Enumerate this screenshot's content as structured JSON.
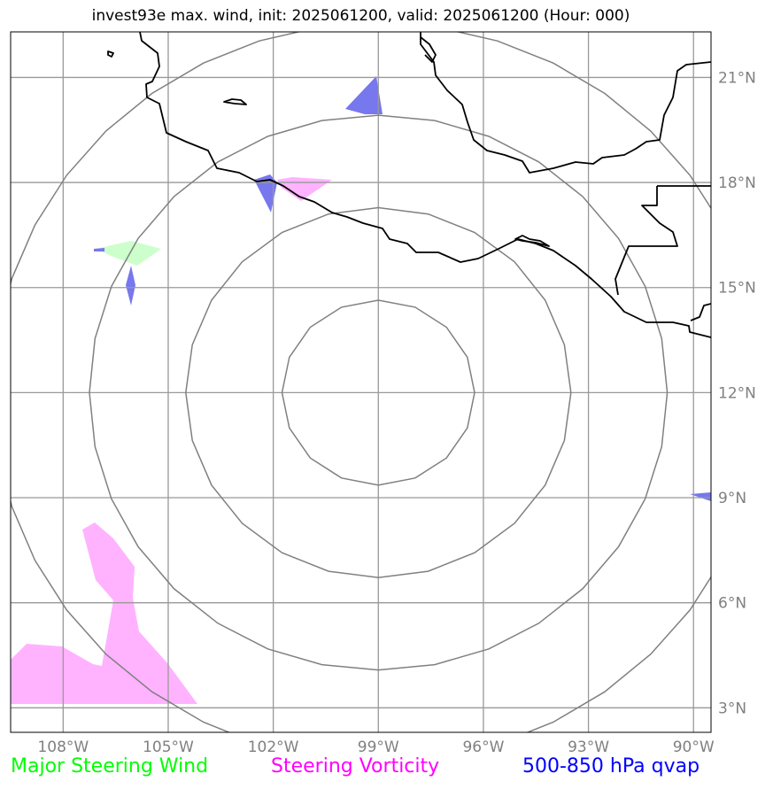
{
  "title": "invest93e max. wind, init: 2025061200, valid: 2025061200 (Hour: 000)",
  "map": {
    "lon_range": [
      -109.5,
      -89.5
    ],
    "lat_range": [
      2.3,
      22.3
    ],
    "lon_ticks": [
      {
        "value": -108,
        "label": "108°W"
      },
      {
        "value": -105,
        "label": "105°W"
      },
      {
        "value": -102,
        "label": "102°W"
      },
      {
        "value": -99,
        "label": "99°W"
      },
      {
        "value": -96,
        "label": "96°W"
      },
      {
        "value": -93,
        "label": "93°W"
      },
      {
        "value": -90,
        "label": "90°W"
      }
    ],
    "lat_ticks": [
      {
        "value": 3,
        "label": "3°N"
      },
      {
        "value": 6,
        "label": "6°N"
      },
      {
        "value": 9,
        "label": "9°N"
      },
      {
        "value": 12,
        "label": "12°N"
      },
      {
        "value": 15,
        "label": "15°N"
      },
      {
        "value": 18,
        "label": "18°N"
      },
      {
        "value": 21,
        "label": "21°N"
      }
    ],
    "storm_center": {
      "lon": -99,
      "lat": 12
    },
    "range_ring_radii_deg": [
      2.75,
      5.5,
      8.25,
      11
    ],
    "gridlines": true
  },
  "legend": [
    {
      "label": "Major Steering Wind",
      "color": "#00ff00"
    },
    {
      "label": "Steering Vorticity",
      "color": "#ff00ff"
    },
    {
      "label": "500-850 hPa qvap",
      "color": "#0000ff"
    }
  ],
  "colors": {
    "grid": "#999999",
    "rings": "#808080",
    "coastline": "#000000",
    "steering_wind_fill": "#ccffcc",
    "vorticity_fill": "#ffb3ff",
    "qvap_fill": "#7777ee"
  }
}
